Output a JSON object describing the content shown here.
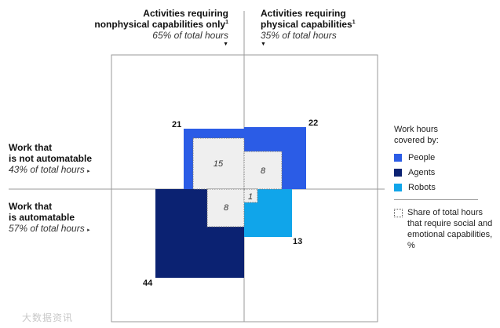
{
  "columns": {
    "left": {
      "line1": "Activities requiring",
      "line2": "nonphysical capabilities only",
      "footnote": "1",
      "share": "65% of total hours",
      "arrow": "▼"
    },
    "right": {
      "line1": "Activities requiring",
      "line2": "physical capabilities",
      "footnote": "1",
      "share": "35% of total hours",
      "arrow": "▼"
    }
  },
  "rows": {
    "top": {
      "line1": "Work that",
      "line2": "is not automatable",
      "share": "43% of total hours",
      "arrow": "▸"
    },
    "bottom": {
      "line1": "Work that",
      "line2": "is automatable",
      "share": "57% of total hours",
      "arrow": "▸"
    }
  },
  "legend": {
    "title_line1": "Work hours",
    "title_line2": "covered by:",
    "items": [
      {
        "label": "People",
        "color": "#2b5ce6"
      },
      {
        "label": "Agents",
        "color": "#0b2272"
      },
      {
        "label": "Robots",
        "color": "#10a5ea"
      }
    ],
    "share_text": "Share of total hours that require social and emotional capabilities, %"
  },
  "chart_data": {
    "type": "matrix",
    "unit": "% of total work hours",
    "quadrants": [
      {
        "column": "nonphysical",
        "row": "not automatable",
        "covered_by": "People",
        "value": 21,
        "social_emotional_share": 15,
        "color": "#2b5ce6"
      },
      {
        "column": "physical",
        "row": "not automatable",
        "covered_by": "People",
        "value": 22,
        "social_emotional_share": 8,
        "color": "#2b5ce6"
      },
      {
        "column": "nonphysical",
        "row": "automatable",
        "covered_by": "Agents",
        "value": 44,
        "social_emotional_share": 8,
        "color": "#0b2272"
      },
      {
        "column": "physical",
        "row": "automatable",
        "covered_by": "Robots",
        "value": 13,
        "social_emotional_share": 1,
        "color": "#10a5ea"
      }
    ],
    "labels": {
      "people_nonphysical": "21",
      "people_physical": "22",
      "agents": "44",
      "robots": "13",
      "share_people_nonphysical": "15",
      "share_people_physical": "8",
      "share_agents": "8",
      "share_robots": "1"
    }
  },
  "watermark": "大数据资讯"
}
